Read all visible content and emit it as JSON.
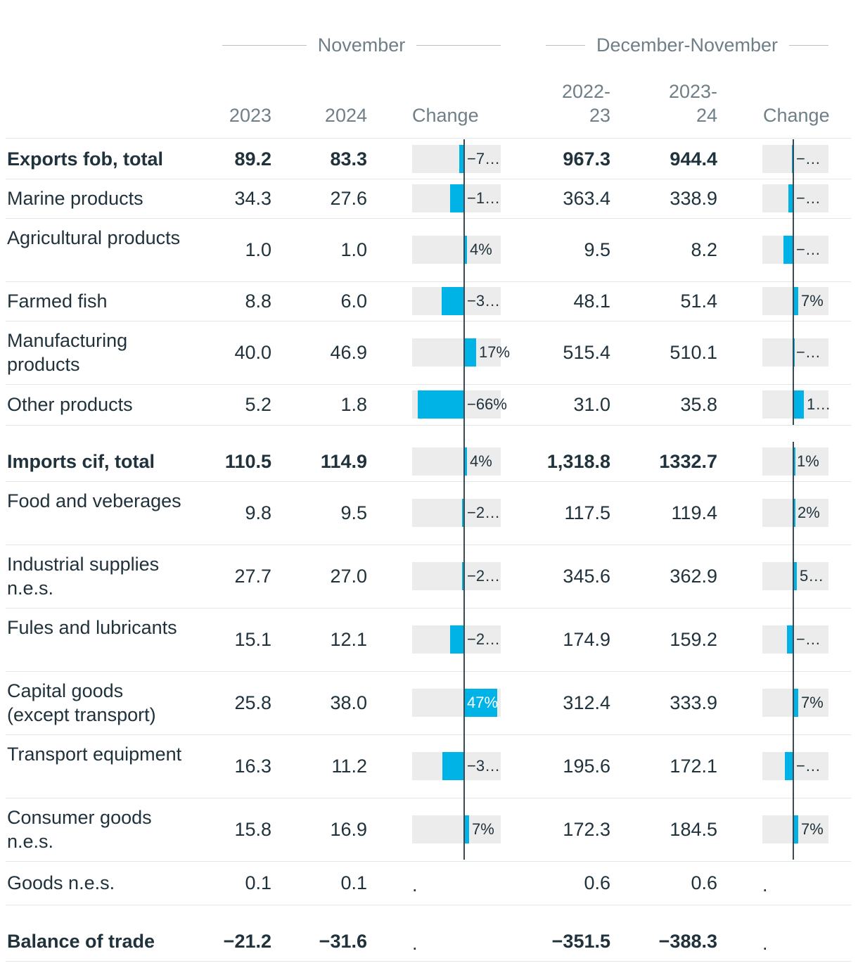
{
  "header": {
    "group_nov": "November",
    "group_dn": "December-November",
    "col_2023": "2023",
    "col_2024": "2024",
    "col_change": "Change",
    "col_2022_23_a": "2022-",
    "col_2022_23_b": "23",
    "col_2023_24_a": "2023-",
    "col_2023_24_b": "24",
    "col_change2": "Change"
  },
  "colors": {
    "bar": "#00b3e6",
    "track": "#ececec",
    "text": "#20323c",
    "muted": "#6f7f88"
  },
  "chart_data": {
    "type": "table",
    "columns": [
      "November 2023",
      "November 2024",
      "Change",
      "December-November 2022-23",
      "December-November 2023-24",
      "Change"
    ],
    "rows": [
      {
        "label": "Exports fob, total",
        "bold": true,
        "nov23": "89.2",
        "nov24": "83.3",
        "chg1": -0.07,
        "chg1_label": "−7…",
        "dn1": "967.3",
        "dn2": "944.4",
        "chg2": -0.02,
        "chg2_label": "−…"
      },
      {
        "label": "Marine products",
        "bold": false,
        "nov23": "34.3",
        "nov24": "27.6",
        "chg1": -0.2,
        "chg1_label": "−1…",
        "dn1": "363.4",
        "dn2": "338.9",
        "chg2": -0.07,
        "chg2_label": "−…"
      },
      {
        "label": "Agricultural products",
        "bold": false,
        "nov23": "1.0",
        "nov24": "1.0",
        "chg1": 0.04,
        "chg1_label": "4%",
        "dn1": "9.5",
        "dn2": "8.2",
        "chg2": -0.14,
        "chg2_label": "−…"
      },
      {
        "label": "Farmed fish",
        "bold": false,
        "nov23": "8.8",
        "nov24": "6.0",
        "chg1": -0.32,
        "chg1_label": "−3…",
        "dn1": "48.1",
        "dn2": "51.4",
        "chg2": 0.07,
        "chg2_label": "7%"
      },
      {
        "label": "Manufacturing products",
        "bold": false,
        "nov23": "40.0",
        "nov24": "46.9",
        "chg1": 0.17,
        "chg1_label": "17%",
        "dn1": "515.4",
        "dn2": "510.1",
        "chg2": -0.01,
        "chg2_label": "−…"
      },
      {
        "label": "Other products",
        "bold": false,
        "nov23": "5.2",
        "nov24": "1.8",
        "chg1": -0.66,
        "chg1_label": "−66%",
        "dn1": "31.0",
        "dn2": "35.8",
        "chg2": 0.15,
        "chg2_label": "1…"
      },
      {
        "label": "Imports cif, total",
        "bold": true,
        "nov23": "110.5",
        "nov24": "114.9",
        "chg1": 0.04,
        "chg1_label": "4%",
        "dn1": "1,318.8",
        "dn2": "1332.7",
        "chg2": 0.01,
        "chg2_label": "1%"
      },
      {
        "label": "Food and veberages",
        "bold": false,
        "nov23": "9.8",
        "nov24": "9.5",
        "chg1": -0.03,
        "chg1_label": "−2…",
        "dn1": "117.5",
        "dn2": "119.4",
        "chg2": 0.02,
        "chg2_label": "2%"
      },
      {
        "label": "Industrial supplies n.e.s.",
        "bold": false,
        "nov23": "27.7",
        "nov24": "27.0",
        "chg1": -0.03,
        "chg1_label": "−2…",
        "dn1": "345.6",
        "dn2": "362.9",
        "chg2": 0.05,
        "chg2_label": "5…"
      },
      {
        "label": "Fules and lubricants",
        "bold": false,
        "nov23": "15.1",
        "nov24": "12.1",
        "chg1": -0.2,
        "chg1_label": "−2…",
        "dn1": "174.9",
        "dn2": "159.2",
        "chg2": -0.09,
        "chg2_label": "−…"
      },
      {
        "label": "Capital goods (except transport)",
        "bold": false,
        "nov23": "25.8",
        "nov24": "38.0",
        "chg1": 0.47,
        "chg1_label": "47%",
        "dn1": "312.4",
        "dn2": "333.9",
        "chg2": 0.07,
        "chg2_label": "7%"
      },
      {
        "label": "Transport equipment",
        "bold": false,
        "nov23": "16.3",
        "nov24": "11.2",
        "chg1": -0.31,
        "chg1_label": "−3…",
        "dn1": "195.6",
        "dn2": "172.1",
        "chg2": -0.12,
        "chg2_label": "−…"
      },
      {
        "label": "Consumer goods n.e.s.",
        "bold": false,
        "nov23": "15.8",
        "nov24": "16.9",
        "chg1": 0.07,
        "chg1_label": "7%",
        "dn1": "172.3",
        "dn2": "184.5",
        "chg2": 0.07,
        "chg2_label": "7%"
      },
      {
        "label": "Goods n.e.s.",
        "bold": false,
        "nov23": "0.1",
        "nov24": "0.1",
        "chg1": null,
        "chg1_label": ".",
        "dn1": "0.6",
        "dn2": "0.6",
        "chg2": null,
        "chg2_label": "."
      },
      {
        "label": "Balance of trade",
        "bold": true,
        "nov23": "−21.2",
        "nov24": "−31.6",
        "chg1": null,
        "chg1_label": ".",
        "dn1": "−351.5",
        "dn2": "−388.3",
        "chg2": null,
        "chg2_label": "."
      }
    ]
  }
}
